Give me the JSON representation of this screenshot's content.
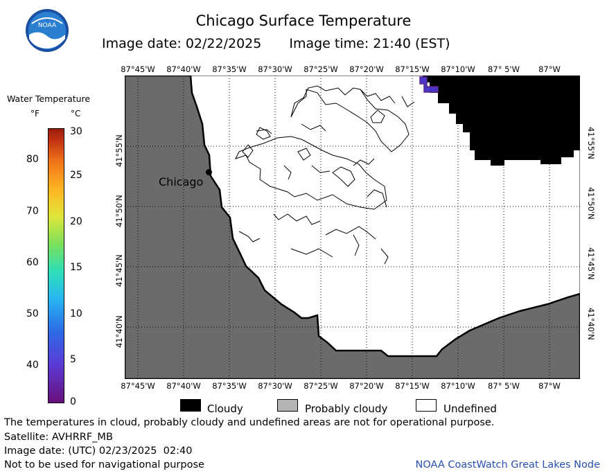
{
  "title": "Chicago Surface Temperature",
  "image_date_label": "Image date: 02/22/2025",
  "image_time_label": "Image time: 21:40 (EST)",
  "logo_text": "NOAA",
  "map": {
    "lon_labels": [
      "87°45'W",
      "87°40'W",
      "87°35'W",
      "87°30'W",
      "87°25'W",
      "87°20'W",
      "87°15'W",
      "87°10'W",
      "87° 5'W",
      "87°W"
    ],
    "lat_labels": [
      "41°55'N",
      "41°50'N",
      "41°45'N",
      "41°40'N"
    ],
    "city_label": "Chicago",
    "colors": {
      "land": "#6b6b6b",
      "cloud": "#000000",
      "undefined": "#ffffff",
      "warm_pixel": "#4a35c8"
    }
  },
  "colorbar": {
    "title": "Water Temperature",
    "unit_f": "°F",
    "unit_c": "°C",
    "f_ticks": [
      "40",
      "50",
      "60",
      "70",
      "80"
    ],
    "c_ticks": [
      "0",
      "5",
      "10",
      "15",
      "20",
      "25",
      "30"
    ]
  },
  "legend": [
    {
      "label": "Cloudy",
      "color": "#000000"
    },
    {
      "label": "Probably cloudy",
      "color": "#b4b4b4"
    },
    {
      "label": "Undefined",
      "color": "#ffffff"
    }
  ],
  "notes": {
    "disclaimer": "The temperatures in cloud, probably cloudy and undefined areas are not for operational purpose.",
    "satellite": "Satellite: AVHRRF_MB",
    "utc_date": "Image date: (UTC) 02/23/2025  02:40",
    "navigation": "Not to be used for navigational purpose",
    "credit": "NOAA CoastWatch Great Lakes Node"
  }
}
